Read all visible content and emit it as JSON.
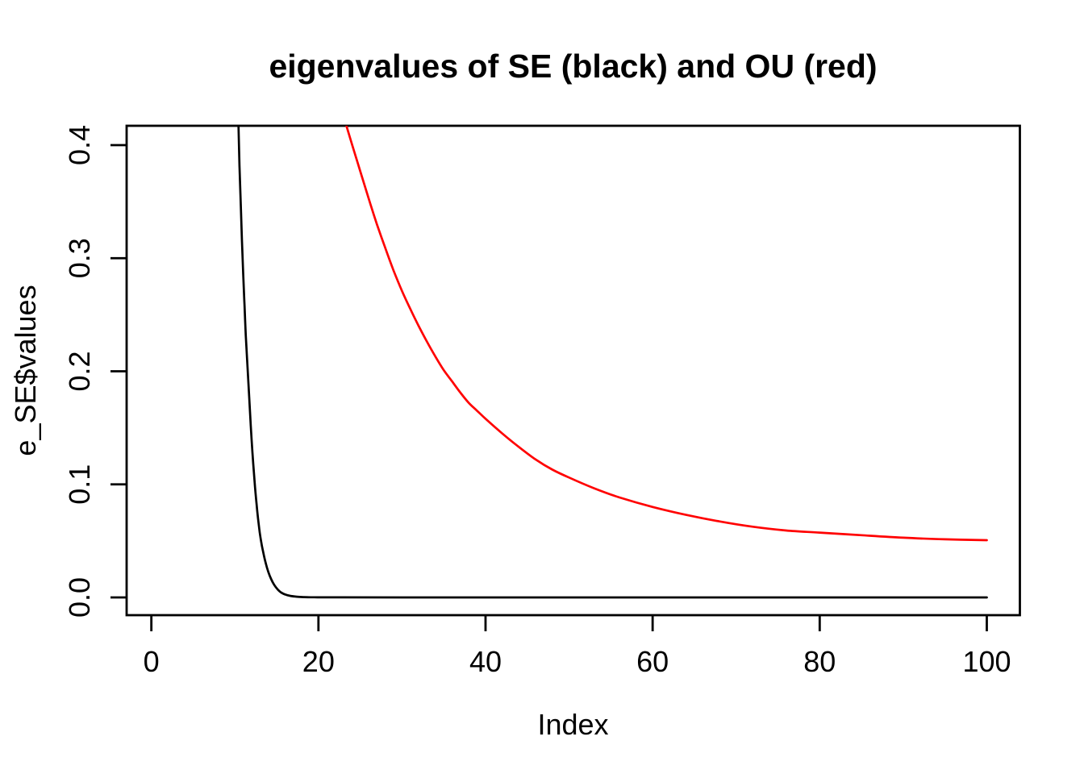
{
  "figure": {
    "background": "#FFFFFF",
    "foreground": "#000000"
  },
  "chart_data": {
    "type": "line",
    "title": "eigenvalues of SE (black) and OU (red)",
    "xlabel": "Index",
    "ylabel": "e_SE$values",
    "grid": false,
    "legend_position": "none",
    "x_range": [
      -2.96,
      103.96
    ],
    "y_range": [
      -0.0157,
      0.4171
    ],
    "x_ticks": [
      0,
      20,
      40,
      60,
      80,
      100
    ],
    "x_tick_labels": [
      "0",
      "20",
      "40",
      "60",
      "80",
      "100"
    ],
    "y_ticks": [
      0,
      0.1,
      0.2,
      0.3,
      0.4
    ],
    "y_tick_labels": [
      "0.0",
      "0.1",
      "0.2",
      "0.3",
      "0.4"
    ],
    "series": [
      {
        "name": "SE eigenvalues (black)",
        "color": "#000000",
        "clipped_above_y": 0.4171,
        "points": [
          [
            10.43,
            0.4171
          ],
          [
            10.55,
            0.382
          ],
          [
            10.7,
            0.348
          ],
          [
            10.85,
            0.315
          ],
          [
            11.0,
            0.285
          ],
          [
            11.15,
            0.258
          ],
          [
            11.3,
            0.232
          ],
          [
            11.5,
            0.205
          ],
          [
            11.7,
            0.178
          ],
          [
            11.9,
            0.152
          ],
          [
            12.1,
            0.128
          ],
          [
            12.35,
            0.103
          ],
          [
            12.6,
            0.082
          ],
          [
            12.85,
            0.0645
          ],
          [
            13.1,
            0.051
          ],
          [
            13.4,
            0.0395
          ],
          [
            13.7,
            0.03
          ],
          [
            14.0,
            0.0225
          ],
          [
            14.35,
            0.016
          ],
          [
            14.7,
            0.0112
          ],
          [
            15.1,
            0.0072
          ],
          [
            15.5,
            0.0045
          ],
          [
            16.0,
            0.0026
          ],
          [
            16.6,
            0.0014
          ],
          [
            17.3,
            0.0007
          ],
          [
            18.2,
            0.0003
          ],
          [
            19.5,
            0.0001
          ],
          [
            22,
            5e-05
          ],
          [
            30,
            2e-05
          ],
          [
            50,
            1e-05
          ],
          [
            100,
            0.0
          ]
        ]
      },
      {
        "name": "OU eigenvalues (red)",
        "color": "#FF0000",
        "clipped_above_y": 0.4171,
        "points": [
          [
            23.35,
            0.4171
          ],
          [
            24,
            0.401
          ],
          [
            25,
            0.377
          ],
          [
            26,
            0.353
          ],
          [
            27,
            0.33
          ],
          [
            28,
            0.309
          ],
          [
            29,
            0.289
          ],
          [
            30,
            0.271
          ],
          [
            31,
            0.255
          ],
          [
            32,
            0.24
          ],
          [
            33,
            0.226
          ],
          [
            34,
            0.213
          ],
          [
            35,
            0.201
          ],
          [
            36,
            0.191
          ],
          [
            37,
            0.181
          ],
          [
            38,
            0.172
          ],
          [
            39,
            0.165
          ],
          [
            40,
            0.158
          ],
          [
            42,
            0.145
          ],
          [
            44,
            0.133
          ],
          [
            46,
            0.122
          ],
          [
            48,
            0.113
          ],
          [
            50,
            0.106
          ],
          [
            53,
            0.0965
          ],
          [
            56,
            0.0885
          ],
          [
            60,
            0.08
          ],
          [
            64,
            0.073
          ],
          [
            68,
            0.0672
          ],
          [
            72,
            0.0625
          ],
          [
            76,
            0.0592
          ],
          [
            80,
            0.0573
          ],
          [
            85,
            0.055
          ],
          [
            90,
            0.0528
          ],
          [
            95,
            0.0514
          ],
          [
            100,
            0.0506
          ]
        ]
      }
    ]
  }
}
